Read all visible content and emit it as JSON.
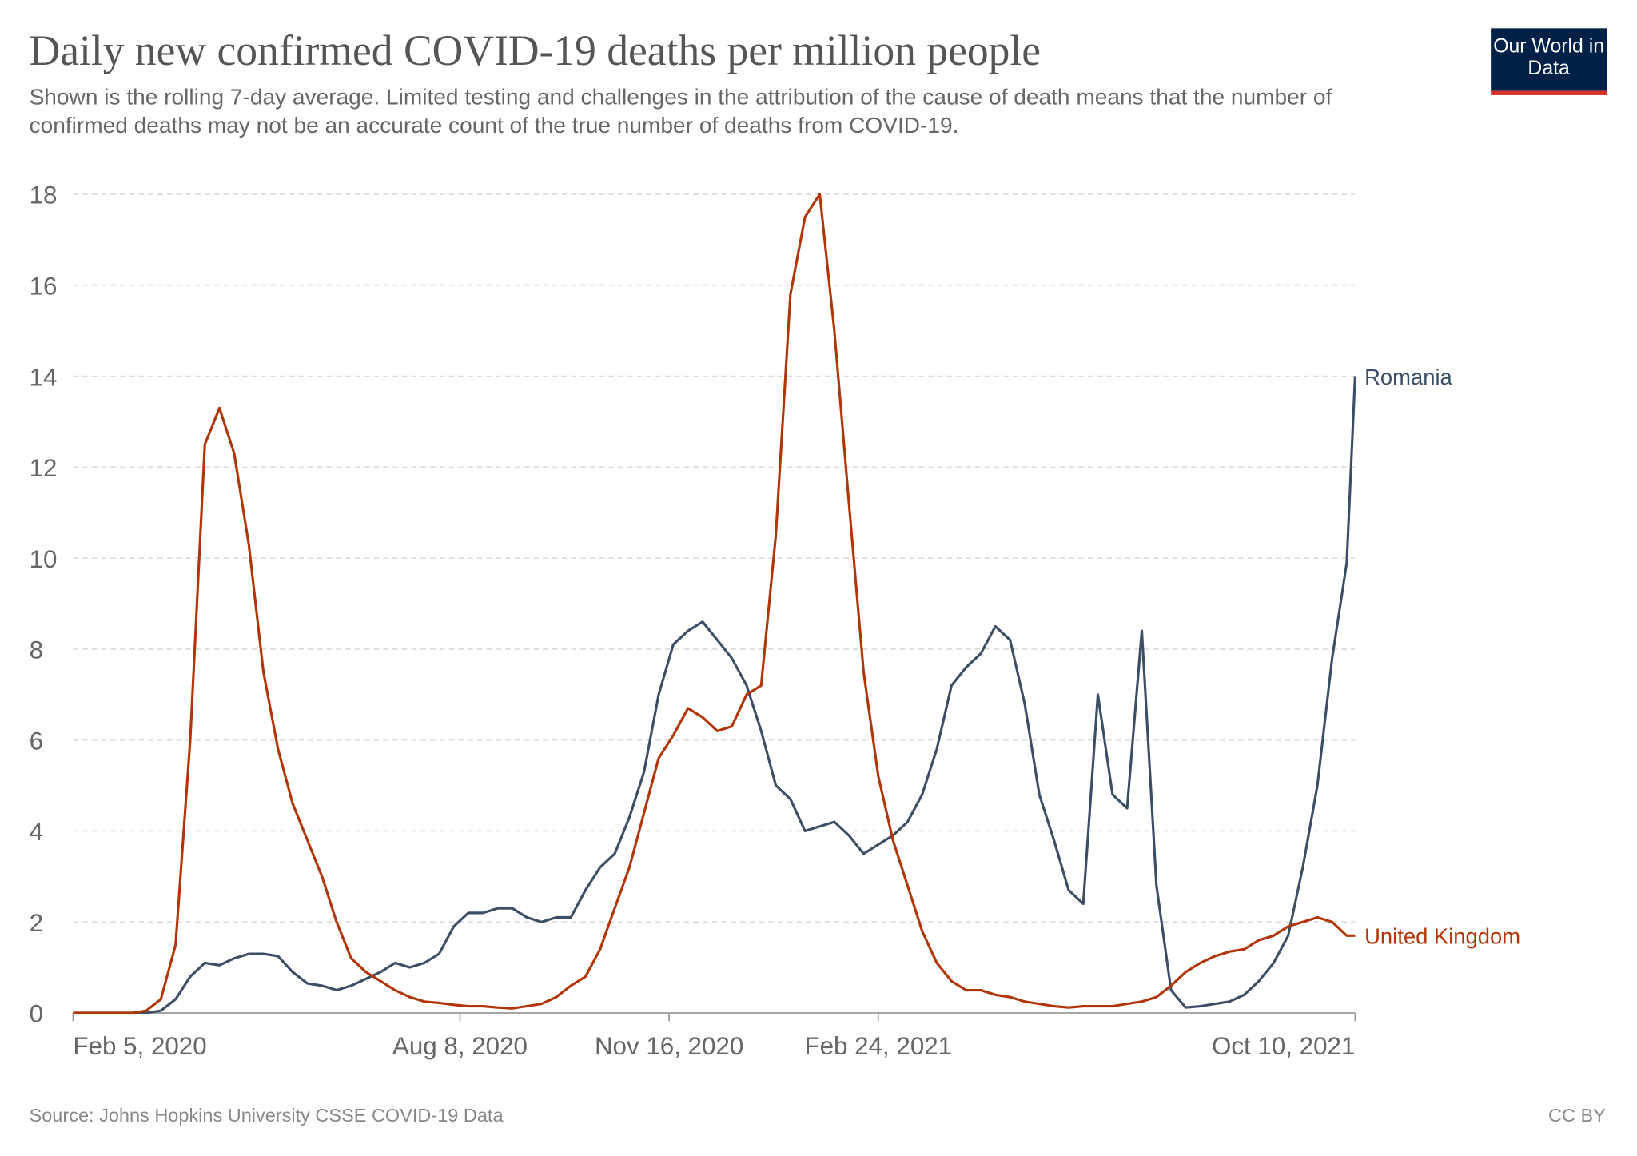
{
  "chart_data": {
    "type": "line",
    "title": "Daily new confirmed COVID-19 deaths per million people",
    "subtitle": "Shown is the rolling 7-day average. Limited testing and challenges in the attribution of the cause of death means that the number of confirmed deaths may not be an accurate count of the true number of deaths from COVID-19.",
    "source": "Source: Johns Hopkins University CSSE COVID-19 Data",
    "license": "CC BY",
    "logo": "Our World in Data",
    "x": [
      "2020-02-05",
      "2020-02-12",
      "2020-02-19",
      "2020-02-26",
      "2020-03-04",
      "2020-03-11",
      "2020-03-18",
      "2020-03-25",
      "2020-04-01",
      "2020-04-08",
      "2020-04-15",
      "2020-04-22",
      "2020-04-29",
      "2020-05-06",
      "2020-05-13",
      "2020-05-20",
      "2020-05-27",
      "2020-06-03",
      "2020-06-10",
      "2020-06-17",
      "2020-06-24",
      "2020-07-01",
      "2020-07-08",
      "2020-07-15",
      "2020-07-22",
      "2020-07-29",
      "2020-08-05",
      "2020-08-12",
      "2020-08-19",
      "2020-08-26",
      "2020-09-02",
      "2020-09-09",
      "2020-09-16",
      "2020-09-23",
      "2020-09-30",
      "2020-10-07",
      "2020-10-14",
      "2020-10-21",
      "2020-10-28",
      "2020-11-04",
      "2020-11-11",
      "2020-11-18",
      "2020-11-25",
      "2020-12-02",
      "2020-12-09",
      "2020-12-16",
      "2020-12-23",
      "2020-12-30",
      "2021-01-06",
      "2021-01-13",
      "2021-01-20",
      "2021-01-27",
      "2021-02-03",
      "2021-02-10",
      "2021-02-17",
      "2021-02-24",
      "2021-03-03",
      "2021-03-10",
      "2021-03-17",
      "2021-03-24",
      "2021-03-31",
      "2021-04-07",
      "2021-04-14",
      "2021-04-21",
      "2021-04-28",
      "2021-05-05",
      "2021-05-12",
      "2021-05-19",
      "2021-05-26",
      "2021-06-02",
      "2021-06-09",
      "2021-06-16",
      "2021-06-23",
      "2021-06-30",
      "2021-07-07",
      "2021-07-14",
      "2021-07-21",
      "2021-07-28",
      "2021-08-04",
      "2021-08-11",
      "2021-08-18",
      "2021-08-25",
      "2021-09-01",
      "2021-09-08",
      "2021-09-15",
      "2021-09-22",
      "2021-09-29",
      "2021-10-06",
      "2021-10-10"
    ],
    "series": [
      {
        "name": "Romania",
        "color": "#3c4e66",
        "values": [
          0,
          0,
          0,
          0,
          0,
          0,
          0.05,
          0.3,
          0.8,
          1.1,
          1.05,
          1.2,
          1.3,
          1.3,
          1.25,
          0.9,
          0.65,
          0.6,
          0.5,
          0.6,
          0.75,
          0.9,
          1.1,
          1.0,
          1.1,
          1.3,
          1.9,
          2.2,
          2.2,
          2.3,
          2.3,
          2.1,
          2.0,
          2.1,
          2.1,
          2.7,
          3.2,
          3.5,
          4.3,
          5.3,
          7.0,
          8.1,
          8.4,
          8.6,
          8.2,
          7.8,
          7.2,
          6.2,
          5.0,
          4.7,
          4.0,
          4.1,
          4.2,
          3.9,
          3.5,
          3.7,
          3.9,
          4.2,
          4.8,
          5.8,
          7.2,
          7.6,
          7.9,
          8.5,
          8.2,
          6.8,
          4.8,
          3.8,
          2.7,
          2.4,
          7.0,
          4.8,
          4.5,
          8.4,
          2.8,
          0.5,
          0.12,
          0.15,
          0.2,
          0.25,
          0.4,
          0.7,
          1.1,
          1.7,
          3.2,
          5.0,
          7.8,
          9.9,
          14.0
        ]
      },
      {
        "name": "United Kingdom",
        "color": "#b13507",
        "values": [
          0,
          0,
          0,
          0,
          0,
          0.05,
          0.3,
          1.5,
          6,
          12.5,
          13.3,
          12.3,
          10.3,
          7.5,
          5.8,
          4.6,
          3.8,
          3.0,
          2.0,
          1.2,
          0.9,
          0.7,
          0.5,
          0.35,
          0.25,
          0.22,
          0.18,
          0.15,
          0.15,
          0.12,
          0.1,
          0.15,
          0.2,
          0.35,
          0.6,
          0.8,
          1.4,
          2.3,
          3.2,
          4.4,
          5.6,
          6.1,
          6.7,
          6.5,
          6.2,
          6.3,
          7.0,
          7.2,
          10.5,
          15.8,
          17.5,
          18.0,
          15.0,
          11.2,
          7.5,
          5.2,
          3.8,
          2.8,
          1.8,
          1.1,
          0.7,
          0.5,
          0.5,
          0.4,
          0.35,
          0.25,
          0.2,
          0.15,
          0.12,
          0.15,
          0.15,
          0.15,
          0.2,
          0.25,
          0.35,
          0.6,
          0.9,
          1.1,
          1.25,
          1.35,
          1.4,
          1.6,
          1.7,
          1.9,
          2.0,
          2.1,
          2.0,
          1.7,
          1.7
        ]
      }
    ],
    "xlim": [
      "2020-02-05",
      "2021-10-10"
    ],
    "xticks": [
      {
        "value": "2020-02-05",
        "label": "Feb 5, 2020"
      },
      {
        "value": "2020-08-08",
        "label": "Aug 8, 2020"
      },
      {
        "value": "2020-11-16",
        "label": "Nov 16, 2020"
      },
      {
        "value": "2021-02-24",
        "label": "Feb 24, 2021"
      },
      {
        "value": "2021-10-10",
        "label": "Oct 10, 2021"
      }
    ],
    "ylim": [
      0,
      18
    ],
    "yticks": [
      0,
      2,
      4,
      6,
      8,
      10,
      12,
      14,
      16,
      18
    ],
    "grid": true
  }
}
